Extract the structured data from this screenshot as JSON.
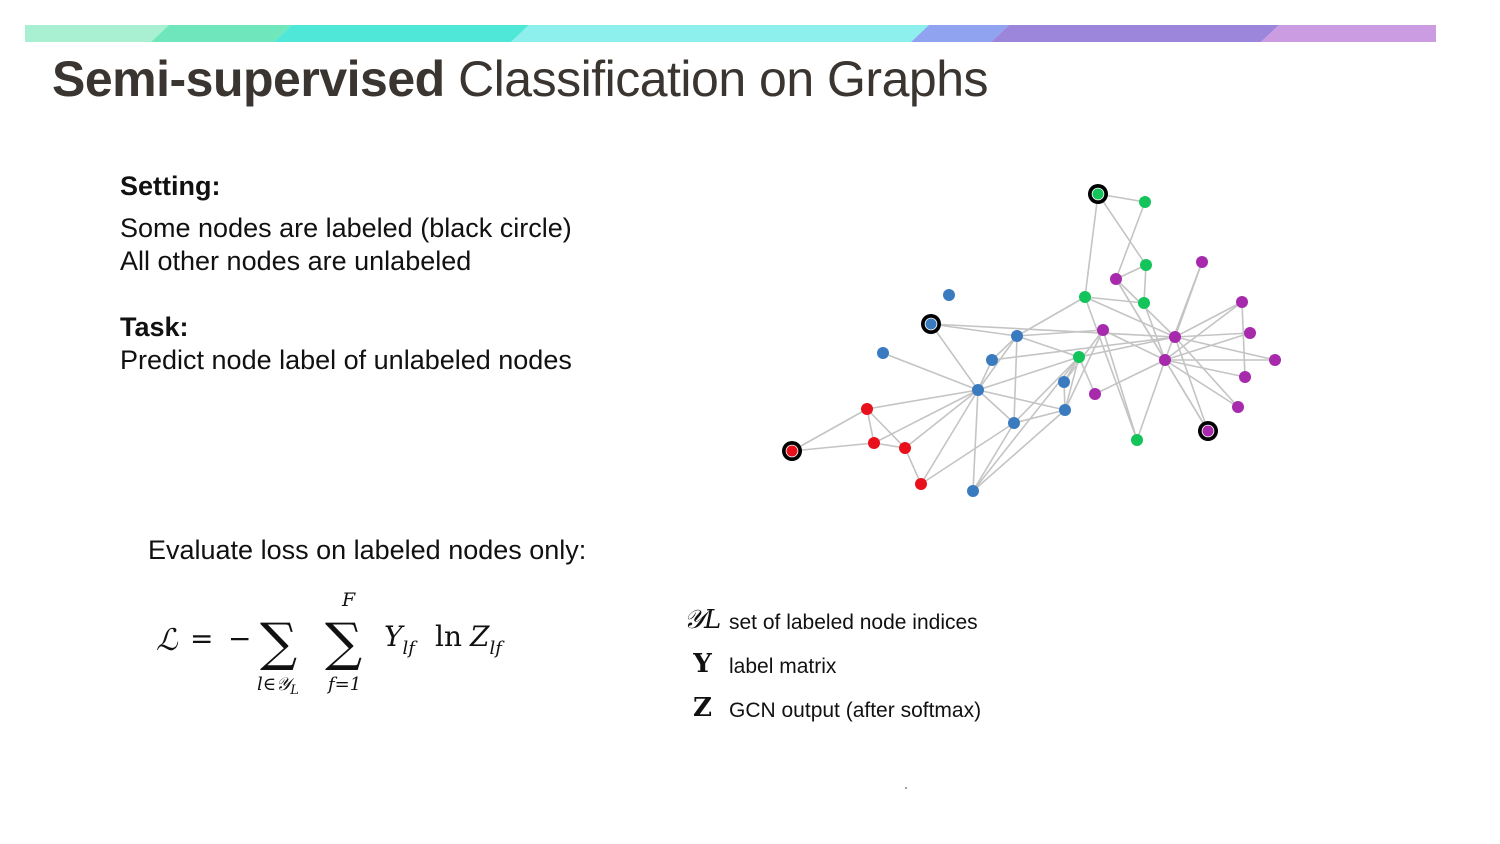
{
  "title": {
    "bold": "Semi-supervised",
    "regular": "Classification on Graphs"
  },
  "setting": {
    "heading": "Setting:",
    "lines": [
      "Some nodes are labeled (black circle)",
      "All other nodes are unlabeled"
    ]
  },
  "task": {
    "heading": "Task:",
    "lines": [
      "Predict node label of unlabeled nodes"
    ]
  },
  "loss_caption": "Evaluate loss on labeled nodes only:",
  "legend": [
    {
      "symbol": "𝒴L",
      "text": "set of labeled node indices"
    },
    {
      "symbol": "Y",
      "text": "label matrix"
    },
    {
      "symbol": "Z",
      "text": "GCN output (after softmax)"
    }
  ],
  "colors": {
    "red": "#e8101a",
    "blue": "#3a7bc0",
    "green": "#12c45a",
    "purple": "#a72aad",
    "edge": "#c4c4c4",
    "topbar": [
      "#a9f0d2",
      "#6fe6bc",
      "#4fe7d8",
      "#8ef0ec",
      "#8fa3f1",
      "#9b86dc",
      "#cc9ce2"
    ]
  },
  "graph": {
    "nodes": [
      {
        "id": "r0",
        "class": "red",
        "labeled": true
      },
      {
        "id": "r1",
        "class": "red",
        "labeled": false
      },
      {
        "id": "r2",
        "class": "red",
        "labeled": false
      },
      {
        "id": "r3",
        "class": "red",
        "labeled": false
      },
      {
        "id": "r4",
        "class": "red",
        "labeled": false
      },
      {
        "id": "b0",
        "class": "blue",
        "labeled": true
      },
      {
        "id": "b1",
        "class": "blue",
        "labeled": false
      },
      {
        "id": "b2",
        "class": "blue",
        "labeled": false
      },
      {
        "id": "b3",
        "class": "blue",
        "labeled": false
      },
      {
        "id": "b4",
        "class": "blue",
        "labeled": false
      },
      {
        "id": "b5",
        "class": "blue",
        "labeled": false
      },
      {
        "id": "b6",
        "class": "blue",
        "labeled": false
      },
      {
        "id": "b7",
        "class": "blue",
        "labeled": false
      },
      {
        "id": "b8",
        "class": "blue",
        "labeled": false
      },
      {
        "id": "b9",
        "class": "blue",
        "labeled": false
      },
      {
        "id": "g0",
        "class": "green",
        "labeled": true
      },
      {
        "id": "g1",
        "class": "green",
        "labeled": false
      },
      {
        "id": "g2",
        "class": "green",
        "labeled": false
      },
      {
        "id": "g3",
        "class": "green",
        "labeled": false
      },
      {
        "id": "g4",
        "class": "green",
        "labeled": false
      },
      {
        "id": "g5",
        "class": "green",
        "labeled": false
      },
      {
        "id": "g6",
        "class": "green",
        "labeled": false
      },
      {
        "id": "p0",
        "class": "purple",
        "labeled": true
      },
      {
        "id": "p1",
        "class": "purple",
        "labeled": false
      },
      {
        "id": "p2",
        "class": "purple",
        "labeled": false
      },
      {
        "id": "p3",
        "class": "purple",
        "labeled": false
      },
      {
        "id": "p4",
        "class": "purple",
        "labeled": false
      },
      {
        "id": "p5",
        "class": "purple",
        "labeled": false
      },
      {
        "id": "p6",
        "class": "purple",
        "labeled": false
      },
      {
        "id": "p7",
        "class": "purple",
        "labeled": false
      },
      {
        "id": "p8",
        "class": "purple",
        "labeled": false
      },
      {
        "id": "p9",
        "class": "purple",
        "labeled": false
      },
      {
        "id": "p10",
        "class": "purple",
        "labeled": false
      },
      {
        "id": "p11",
        "class": "purple",
        "labeled": false
      }
    ],
    "edges": [
      [
        "r0",
        "r1"
      ],
      [
        "r0",
        "r2"
      ],
      [
        "r1",
        "r2"
      ],
      [
        "r1",
        "r3"
      ],
      [
        "r1",
        "b5"
      ],
      [
        "r2",
        "r3"
      ],
      [
        "r2",
        "b5"
      ],
      [
        "r3",
        "b5"
      ],
      [
        "r3",
        "r4"
      ],
      [
        "r4",
        "b5"
      ],
      [
        "r4",
        "b6"
      ],
      [
        "b0",
        "b5"
      ],
      [
        "b0",
        "b2"
      ],
      [
        "b0",
        "p6"
      ],
      [
        "b1",
        "b5"
      ],
      [
        "b2",
        "b5"
      ],
      [
        "b2",
        "b3"
      ],
      [
        "b2",
        "g5"
      ],
      [
        "b2",
        "p5"
      ],
      [
        "b2",
        "b6"
      ],
      [
        "b3",
        "b5"
      ],
      [
        "b3",
        "p6"
      ],
      [
        "b5",
        "b6"
      ],
      [
        "b5",
        "b8"
      ],
      [
        "b5",
        "g5"
      ],
      [
        "b5",
        "b9"
      ],
      [
        "b6",
        "b8"
      ],
      [
        "b6",
        "b9"
      ],
      [
        "b6",
        "g5"
      ],
      [
        "b7",
        "b9"
      ],
      [
        "b7",
        "g5"
      ],
      [
        "b7",
        "p5"
      ],
      [
        "b8",
        "g5"
      ],
      [
        "b8",
        "b9"
      ],
      [
        "b9",
        "p5"
      ],
      [
        "b9",
        "g5"
      ],
      [
        "g0",
        "g1"
      ],
      [
        "g0",
        "g2"
      ],
      [
        "g0",
        "g4"
      ],
      [
        "g1",
        "p1"
      ],
      [
        "g2",
        "p1"
      ],
      [
        "g2",
        "g3"
      ],
      [
        "g3",
        "g4"
      ],
      [
        "g4",
        "b2"
      ],
      [
        "g4",
        "p6"
      ],
      [
        "g4",
        "g6"
      ],
      [
        "g5",
        "p6"
      ],
      [
        "g5",
        "p4"
      ],
      [
        "p2",
        "p6"
      ],
      [
        "p2",
        "p7"
      ],
      [
        "p3",
        "p7"
      ],
      [
        "p3",
        "p10"
      ],
      [
        "p4",
        "p7"
      ],
      [
        "p5",
        "p7"
      ],
      [
        "p6",
        "p1"
      ],
      [
        "p6",
        "p2"
      ],
      [
        "p6",
        "p3"
      ],
      [
        "p6",
        "p8"
      ],
      [
        "p6",
        "p9"
      ],
      [
        "p6",
        "p0"
      ],
      [
        "p6",
        "p11"
      ],
      [
        "p7",
        "p8"
      ],
      [
        "p7",
        "p9"
      ],
      [
        "p7",
        "p10"
      ],
      [
        "p7",
        "p11"
      ],
      [
        "p7",
        "p0"
      ],
      [
        "p7",
        "g3"
      ],
      [
        "p7",
        "g6"
      ],
      [
        "p7",
        "p1"
      ],
      [
        "p5",
        "g6"
      ],
      [
        "p1",
        "p0"
      ]
    ]
  }
}
